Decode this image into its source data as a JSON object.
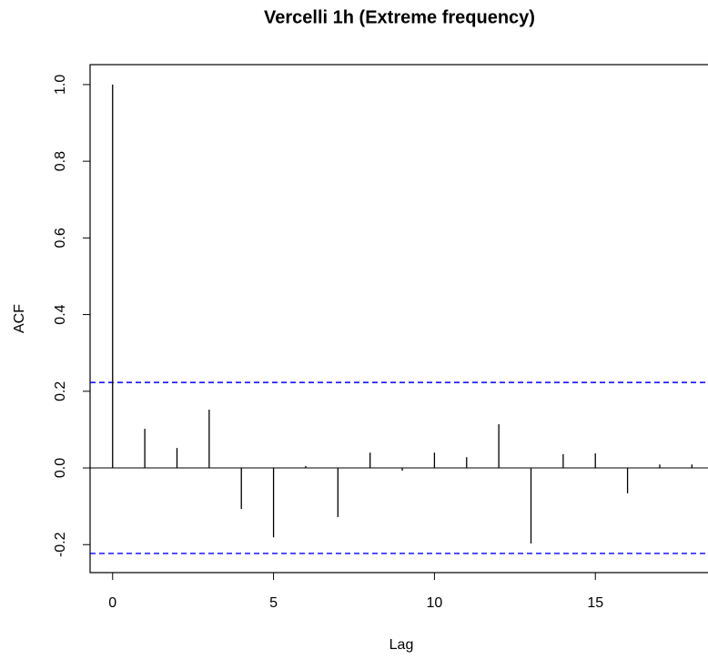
{
  "chart_data": {
    "type": "stem",
    "title": "Vercelli 1h (Extreme frequency)",
    "x_label": "Lag",
    "y_label": "ACF",
    "x": [
      0,
      1,
      2,
      3,
      4,
      5,
      6,
      7,
      8,
      9,
      10,
      11,
      12,
      13,
      14,
      15,
      16,
      17,
      18
    ],
    "values": [
      1.0,
      0.102,
      0.052,
      0.152,
      -0.107,
      -0.181,
      0.005,
      -0.128,
      0.04,
      -0.007,
      0.04,
      0.028,
      0.114,
      -0.197,
      0.036,
      0.038,
      -0.066,
      0.009,
      0.009
    ],
    "color": "#000000",
    "confidence_bounds": [
      -0.223,
      0.223
    ],
    "confidence_color": "#0000ff",
    "xlim": [
      -0.7,
      18.5
    ],
    "ylim": [
      -0.273,
      1.052
    ],
    "xticks": [
      0,
      5,
      10,
      15
    ],
    "yticks": [
      -0.2,
      {
        "value": 0,
        "label": "0.0"
      },
      0.2,
      0.4,
      0.6,
      0.8,
      {
        "value": 1,
        "label": "1.0"
      }
    ]
  }
}
